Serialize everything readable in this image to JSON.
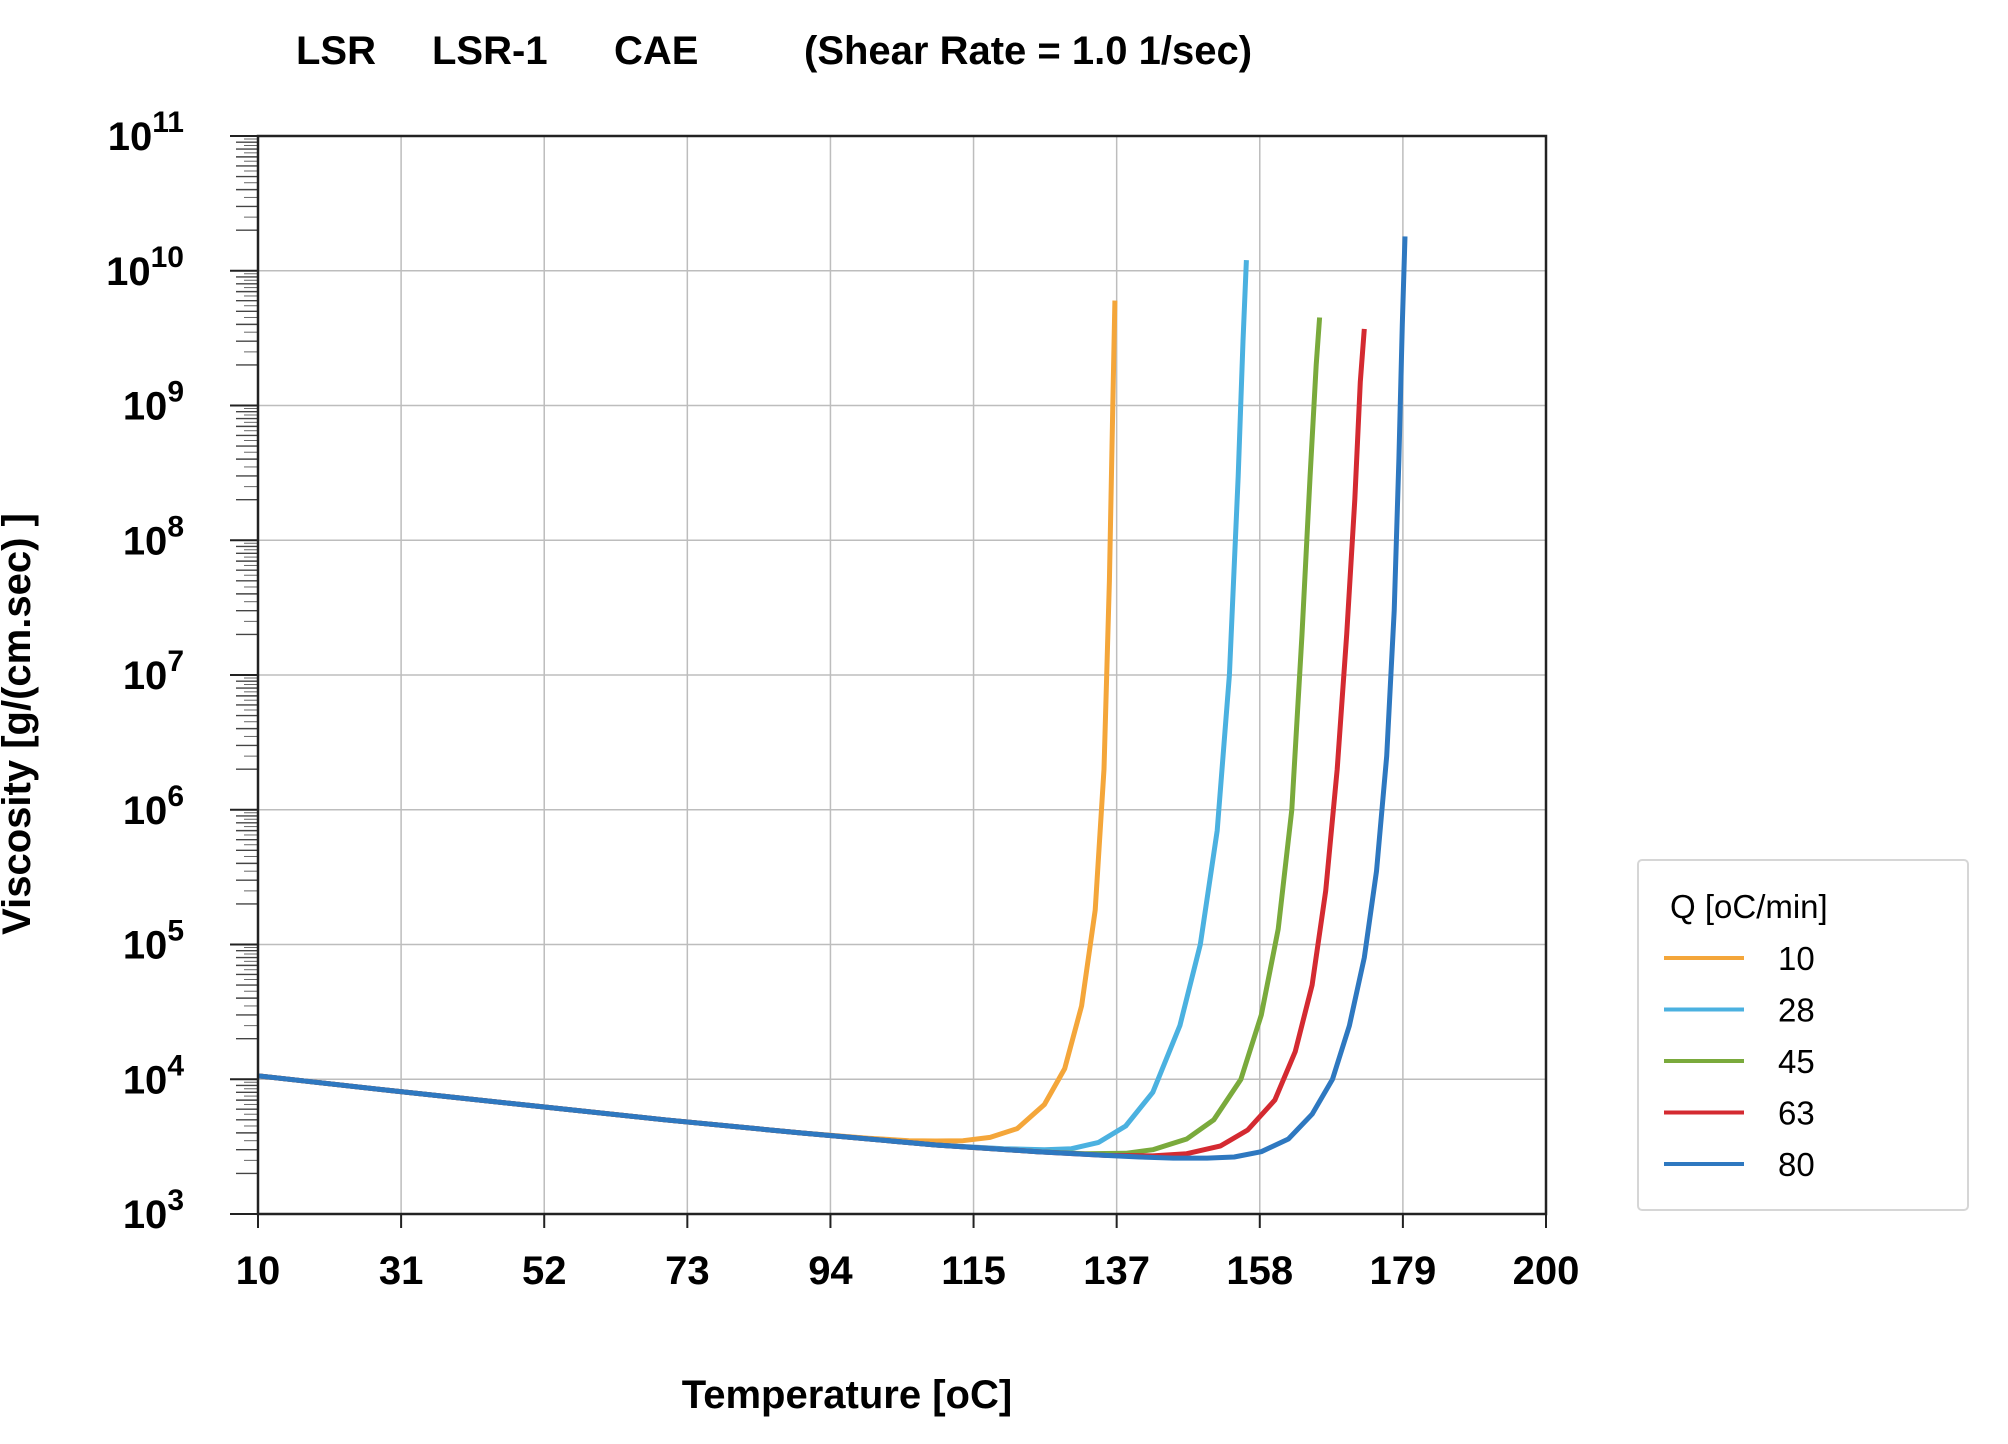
{
  "chart_data": {
    "type": "line",
    "title_parts": [
      "LSR",
      "LSR-1",
      "CAE",
      "(Shear Rate =  1.0 1/sec)"
    ],
    "xlabel": "Temperature [oC]",
    "ylabel": "Viscosity [g/(cm.sec) ]",
    "x_ticks": [
      "10",
      "31",
      "52",
      "73",
      "94",
      "115",
      "137",
      "158",
      "179",
      "200"
    ],
    "xlim": [
      10,
      200
    ],
    "y_scale": "log",
    "ylim": [
      1000,
      100000000000
    ],
    "y_ticks": [
      {
        "base": "10",
        "exp": "3"
      },
      {
        "base": "10",
        "exp": "4"
      },
      {
        "base": "10",
        "exp": "5"
      },
      {
        "base": "10",
        "exp": "6"
      },
      {
        "base": "10",
        "exp": "7"
      },
      {
        "base": "10",
        "exp": "8"
      },
      {
        "base": "10",
        "exp": "9"
      },
      {
        "base": "10",
        "exp": "10"
      },
      {
        "base": "10",
        "exp": "11"
      }
    ],
    "grid": true,
    "legend_title": "Q [oC/min]",
    "legend_position": "right",
    "series": [
      {
        "name": "10",
        "color": "#F4A63A",
        "x": [
          10,
          30,
          50,
          70,
          90,
          100,
          106,
          110,
          114,
          118,
          122,
          126,
          129,
          131.5,
          133.5,
          134.8,
          135.6,
          136.1,
          136.4
        ],
        "y": [
          10600,
          8200,
          6400,
          5000,
          4000,
          3650,
          3500,
          3480,
          3500,
          3700,
          4300,
          6500,
          12000,
          35000,
          180000,
          2000000,
          50000000,
          1000000000,
          6000000000
        ]
      },
      {
        "name": "28",
        "color": "#4BB1E0",
        "x": [
          10,
          30,
          50,
          70,
          90,
          110,
          120,
          126,
          130,
          134,
          138,
          142,
          146,
          149,
          151.5,
          153.3,
          154.6,
          155.3,
          155.8
        ],
        "y": [
          10600,
          8200,
          6400,
          5000,
          4000,
          3250,
          3050,
          3000,
          3050,
          3400,
          4500,
          8000,
          25000,
          100000,
          700000,
          10000000,
          300000000,
          3000000000,
          12000000000
        ]
      },
      {
        "name": "45",
        "color": "#7AAA3C",
        "x": [
          10,
          30,
          50,
          70,
          90,
          110,
          125,
          132,
          138,
          142,
          147,
          151,
          155,
          158,
          160.5,
          162.5,
          164,
          165.2,
          166.1,
          166.6
        ],
        "y": [
          10600,
          8200,
          6400,
          5000,
          4000,
          3250,
          2900,
          2800,
          2820,
          3000,
          3600,
          5000,
          10000,
          30000,
          130000,
          1000000,
          20000000,
          300000000,
          2000000000,
          4500000000
        ]
      },
      {
        "name": "63",
        "color": "#D42A31",
        "x": [
          10,
          30,
          50,
          70,
          90,
          110,
          125,
          135,
          142,
          147,
          152,
          156,
          160,
          163,
          165.5,
          167.5,
          169.2,
          170.6,
          171.8,
          172.6,
          173.2
        ],
        "y": [
          10600,
          8200,
          6400,
          5000,
          4000,
          3250,
          2900,
          2720,
          2700,
          2800,
          3200,
          4200,
          7000,
          16000,
          50000,
          250000,
          2000000,
          20000000,
          200000000,
          1500000000,
          3700000000
        ]
      },
      {
        "name": "80",
        "color": "#2E78C0",
        "x": [
          10,
          30,
          50,
          70,
          90,
          110,
          125,
          135,
          140,
          145,
          150,
          154,
          158,
          162,
          165.5,
          168.5,
          171,
          173.2,
          175,
          176.5,
          177.6,
          178.3,
          178.8,
          179.2
        ],
        "y": [
          10600,
          8200,
          6400,
          5000,
          4000,
          3250,
          2900,
          2720,
          2650,
          2600,
          2600,
          2650,
          2900,
          3600,
          5500,
          10000,
          25000,
          80000,
          350000,
          2500000,
          30000000,
          400000000,
          4000000000,
          18000000000
        ]
      }
    ]
  }
}
